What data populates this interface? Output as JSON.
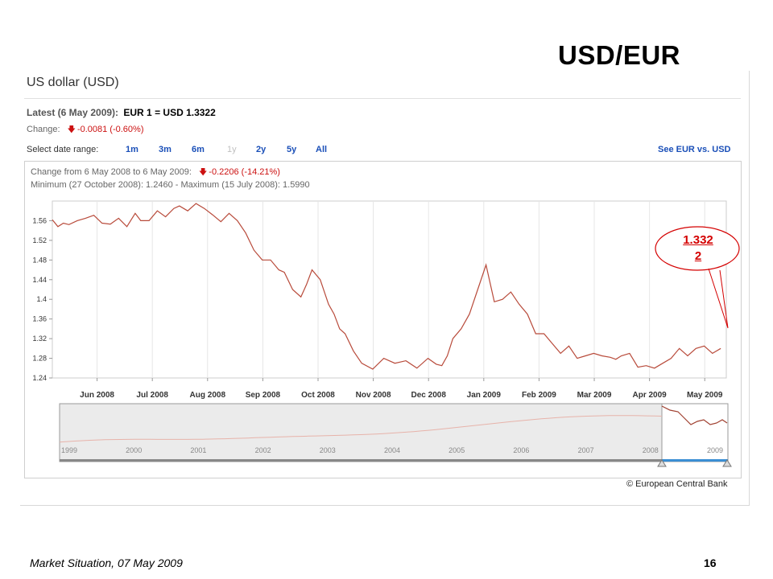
{
  "slide": {
    "title": "USD/EUR",
    "footer_text": "Market Situation, 07 May 2009",
    "page_number": "16"
  },
  "panel": {
    "heading": "US dollar (USD)",
    "latest_label": "Latest (6 May 2009):",
    "latest_value": "EUR 1 = USD 1.3322",
    "change_label": "Change:",
    "change_value": "-0.0081 (-0.60%)",
    "date_range_label": "Select date range:",
    "date_ranges": [
      {
        "label": "1m",
        "enabled": true
      },
      {
        "label": "3m",
        "enabled": true
      },
      {
        "label": "6m",
        "enabled": true
      },
      {
        "label": "1y",
        "enabled": false
      },
      {
        "label": "2y",
        "enabled": true
      },
      {
        "label": "5y",
        "enabled": true
      },
      {
        "label": "All",
        "enabled": true
      }
    ],
    "see_link": "See EUR vs. USD",
    "change_from_label": "Change from 6 May 2008 to 6 May 2009:",
    "change_from_value": "-0.2206 (-14.21%)",
    "min_max_text": "Minimum (27 October 2008): 1.2460 - Maximum (15 July 2008): 1.5990",
    "source": "© European Central Bank",
    "callout": {
      "line1": "1.332",
      "line2": "2"
    }
  },
  "chart_data": {
    "type": "line",
    "title": "",
    "xlabel": "",
    "ylabel": "",
    "ylim": [
      1.24,
      1.6
    ],
    "y_ticks": [
      "1.24",
      "1.28",
      "1.32",
      "1.36",
      "1.4",
      "1.44",
      "1.48",
      "1.52",
      "1.56"
    ],
    "x_ticks": [
      "Jun 2008",
      "Jul 2008",
      "Aug 2008",
      "Sep 2008",
      "Oct 2008",
      "Nov 2008",
      "Dec 2008",
      "Jan 2009",
      "Feb 2009",
      "Mar 2009",
      "Apr 2009",
      "May 2009"
    ],
    "x_tick_positions": [
      0.81,
      1.81,
      2.81,
      3.81,
      4.81,
      5.81,
      6.81,
      7.81,
      8.81,
      9.81,
      10.81,
      11.81
    ],
    "grid": "vertical",
    "series": [
      {
        "color": "#b84a3a",
        "x": [
          0,
          0.1,
          0.2,
          0.3,
          0.45,
          0.6,
          0.75,
          0.9,
          1.05,
          1.2,
          1.35,
          1.5,
          1.6,
          1.75,
          1.9,
          2.05,
          2.2,
          2.3,
          2.45,
          2.6,
          2.75,
          2.9,
          3.05,
          3.2,
          3.35,
          3.5,
          3.65,
          3.8,
          3.95,
          4.1,
          4.2,
          4.35,
          4.5,
          4.6,
          4.7,
          4.85,
          5.0,
          5.1,
          5.2,
          5.3,
          5.45,
          5.6,
          5.8,
          6.0,
          6.2,
          6.4,
          6.6,
          6.8,
          6.95,
          7.05,
          7.15,
          7.25,
          7.4,
          7.55,
          7.7,
          7.85,
          8.0,
          8.15,
          8.3,
          8.45,
          8.6,
          8.75,
          8.9,
          9.05,
          9.2,
          9.35,
          9.5,
          9.65,
          9.8,
          9.95,
          10.1,
          10.2,
          10.3,
          10.45,
          10.6,
          10.75,
          10.9,
          11.05,
          11.2,
          11.35,
          11.5,
          11.65,
          11.8,
          11.95,
          12.1
        ],
        "values": [
          1.562,
          1.548,
          1.555,
          1.552,
          1.56,
          1.565,
          1.571,
          1.555,
          1.553,
          1.565,
          1.548,
          1.575,
          1.56,
          1.56,
          1.58,
          1.568,
          1.585,
          1.59,
          1.58,
          1.595,
          1.585,
          1.572,
          1.558,
          1.575,
          1.56,
          1.535,
          1.5,
          1.48,
          1.48,
          1.46,
          1.455,
          1.42,
          1.405,
          1.43,
          1.46,
          1.44,
          1.39,
          1.37,
          1.34,
          1.33,
          1.295,
          1.27,
          1.258,
          1.28,
          1.27,
          1.275,
          1.26,
          1.28,
          1.268,
          1.265,
          1.285,
          1.32,
          1.34,
          1.37,
          1.42,
          1.47,
          1.395,
          1.4,
          1.415,
          1.39,
          1.37,
          1.33,
          1.33,
          1.31,
          1.29,
          1.305,
          1.28,
          1.285,
          1.29,
          1.285,
          1.282,
          1.278,
          1.285,
          1.29,
          1.262,
          1.265,
          1.26,
          1.27,
          1.28,
          1.3,
          1.285,
          1.3,
          1.305,
          1.29,
          1.3
        ]
      }
    ],
    "navigator": {
      "x_labels": [
        "1999",
        "2000",
        "2001",
        "2002",
        "2003",
        "2004",
        "2005",
        "2006",
        "2007",
        "2008",
        "2009"
      ]
    }
  }
}
